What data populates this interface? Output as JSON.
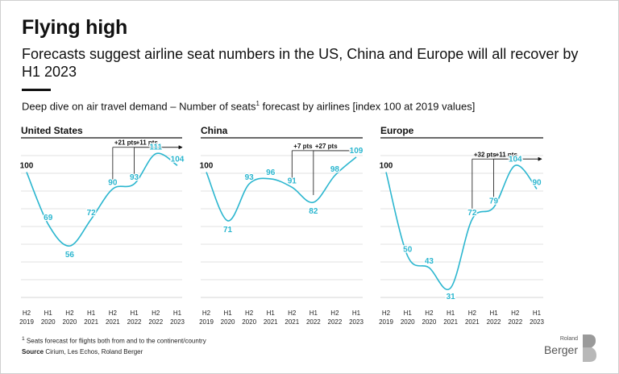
{
  "header": {
    "title": "Flying high",
    "subtitle": "Forecasts suggest airline seat numbers in the US, China and Europe will all recover by H1 2023",
    "description": "Deep dive on air travel demand – Number of seats",
    "description_sup": "1",
    "description_tail": " forecast by airlines [index 100 at 2019 values]"
  },
  "footer": {
    "footnote_sup": "1",
    "footnote": " Seats forecast for flights both from and to the continent/country",
    "source_label": "Source",
    "source_text": " Cirium, Les Echos, Roland Berger"
  },
  "logo": {
    "line1": "Roland",
    "line2": "Berger"
  },
  "colors": {
    "line": "#2bb6cf",
    "label": "#2bb6cf",
    "annotation": "#111111",
    "grid": "#d6d6d6"
  },
  "chart_data": [
    {
      "type": "line",
      "title": "United States",
      "categories": [
        [
          "H2",
          "2019"
        ],
        [
          "H1",
          "2020"
        ],
        [
          "H2",
          "2020"
        ],
        [
          "H1",
          "2021"
        ],
        [
          "H2",
          "2021"
        ],
        [
          "H1",
          "2022"
        ],
        [
          "H2",
          "2022"
        ],
        [
          "H1",
          "2023"
        ]
      ],
      "values": [
        100,
        69,
        56,
        72,
        90,
        93,
        111,
        104
      ],
      "ylim": [
        20,
        120
      ],
      "arrows": [
        {
          "from": 4,
          "text": "+21 pts"
        },
        {
          "from": 5,
          "text": "+11 pts"
        }
      ]
    },
    {
      "type": "line",
      "title": "China",
      "categories": [
        [
          "H2",
          "2019"
        ],
        [
          "H1",
          "2020"
        ],
        [
          "H2",
          "2020"
        ],
        [
          "H1",
          "2021"
        ],
        [
          "H2",
          "2021"
        ],
        [
          "H1",
          "2022"
        ],
        [
          "H2",
          "2022"
        ],
        [
          "H1",
          "2023"
        ]
      ],
      "values": [
        100,
        71,
        93,
        96,
        91,
        82,
        98,
        109
      ],
      "ylim": [
        20,
        120
      ],
      "arrows": [
        {
          "from": 4,
          "text": "+7 pts"
        },
        {
          "from": 5,
          "text": "+27 pts"
        }
      ]
    },
    {
      "type": "line",
      "title": "Europe",
      "categories": [
        [
          "H2",
          "2019"
        ],
        [
          "H1",
          "2020"
        ],
        [
          "H2",
          "2020"
        ],
        [
          "H1",
          "2021"
        ],
        [
          "H2",
          "2021"
        ],
        [
          "H1",
          "2022"
        ],
        [
          "H2",
          "2022"
        ],
        [
          "H1",
          "2023"
        ]
      ],
      "values": [
        100,
        50,
        43,
        31,
        72,
        79,
        104,
        90
      ],
      "ylim": [
        20,
        120
      ],
      "arrows": [
        {
          "from": 4,
          "text": "+32 pts"
        },
        {
          "from": 5,
          "text": "+11 pts"
        }
      ]
    }
  ]
}
